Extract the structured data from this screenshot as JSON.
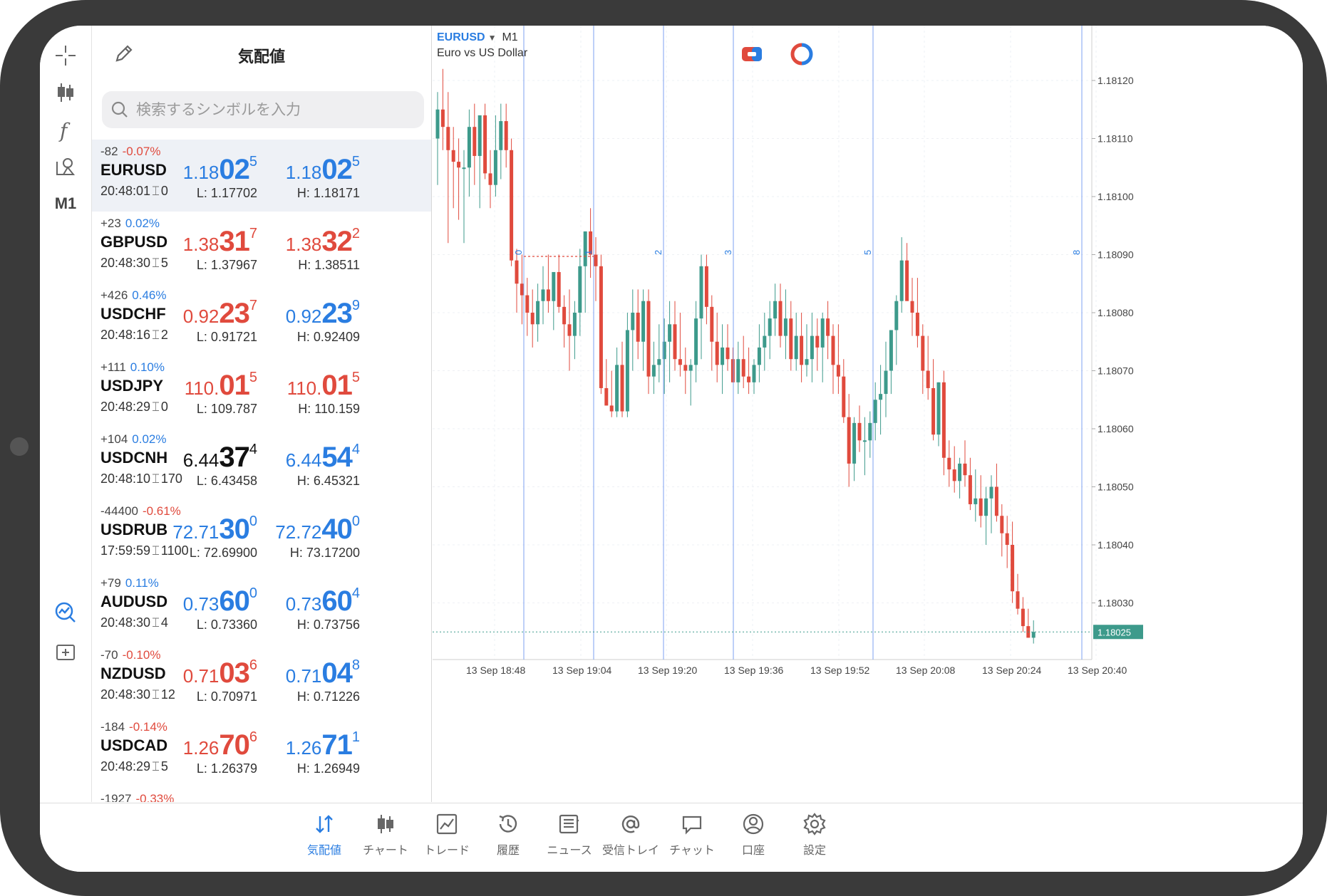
{
  "watchlist": {
    "title": "気配値",
    "search_placeholder": "検索するシンボルを入力",
    "rows": [
      {
        "change": "-82",
        "pct": "-0.07%",
        "pct_color": "red",
        "symbol": "EURUSD",
        "time": "20:48:01",
        "spread": "0",
        "bid": {
          "small": "1.18",
          "big": "02",
          "sup": "5",
          "color": "blue"
        },
        "ask": {
          "small": "1.18",
          "big": "02",
          "sup": "5",
          "color": "blue"
        },
        "low": "L: 1.17702",
        "high": "H: 1.18171"
      },
      {
        "change": "+23",
        "pct": "0.02%",
        "pct_color": "blue",
        "symbol": "GBPUSD",
        "time": "20:48:30",
        "spread": "5",
        "bid": {
          "small": "1.38",
          "big": "31",
          "sup": "7",
          "color": "red"
        },
        "ask": {
          "small": "1.38",
          "big": "32",
          "sup": "2",
          "color": "red"
        },
        "low": "L: 1.37967",
        "high": "H: 1.38511"
      },
      {
        "change": "+426",
        "pct": "0.46%",
        "pct_color": "blue",
        "symbol": "USDCHF",
        "time": "20:48:16",
        "spread": "2",
        "bid": {
          "small": "0.92",
          "big": "23",
          "sup": "7",
          "color": "red"
        },
        "ask": {
          "small": "0.92",
          "big": "23",
          "sup": "9",
          "color": "blue"
        },
        "low": "L: 0.91721",
        "high": "H: 0.92409"
      },
      {
        "change": "+111",
        "pct": "0.10%",
        "pct_color": "blue",
        "symbol": "USDJPY",
        "time": "20:48:29",
        "spread": "0",
        "bid": {
          "small": "110.",
          "big": "01",
          "sup": "5",
          "color": "red"
        },
        "ask": {
          "small": "110.",
          "big": "01",
          "sup": "5",
          "color": "red"
        },
        "low": "L: 109.787",
        "high": "H: 110.159"
      },
      {
        "change": "+104",
        "pct": "0.02%",
        "pct_color": "blue",
        "symbol": "USDCNH",
        "time": "20:48:10",
        "spread": "170",
        "bid": {
          "small": "6.44",
          "big": "37",
          "sup": "4",
          "color": "black"
        },
        "ask": {
          "small": "6.44",
          "big": "54",
          "sup": "4",
          "color": "blue"
        },
        "low": "L: 6.43458",
        "high": "H: 6.45321"
      },
      {
        "change": "-44400",
        "pct": "-0.61%",
        "pct_color": "red",
        "symbol": "USDRUB",
        "time": "17:59:59",
        "spread": "1100",
        "bid": {
          "small": "72.71",
          "big": "30",
          "sup": "0",
          "color": "blue"
        },
        "ask": {
          "small": "72.72",
          "big": "40",
          "sup": "0",
          "color": "blue"
        },
        "low": "L: 72.69900",
        "high": "H: 73.17200"
      },
      {
        "change": "+79",
        "pct": "0.11%",
        "pct_color": "blue",
        "symbol": "AUDUSD",
        "time": "20:48:30",
        "spread": "4",
        "bid": {
          "small": "0.73",
          "big": "60",
          "sup": "0",
          "color": "blue"
        },
        "ask": {
          "small": "0.73",
          "big": "60",
          "sup": "4",
          "color": "blue"
        },
        "low": "L: 0.73360",
        "high": "H: 0.73756"
      },
      {
        "change": "-70",
        "pct": "-0.10%",
        "pct_color": "red",
        "symbol": "NZDUSD",
        "time": "20:48:30",
        "spread": "12",
        "bid": {
          "small": "0.71",
          "big": "03",
          "sup": "6",
          "color": "red"
        },
        "ask": {
          "small": "0.71",
          "big": "04",
          "sup": "8",
          "color": "blue"
        },
        "low": "L: 0.70971",
        "high": "H: 0.71226"
      },
      {
        "change": "-184",
        "pct": "-0.14%",
        "pct_color": "red",
        "symbol": "USDCAD",
        "time": "20:48:29",
        "spread": "5",
        "bid": {
          "small": "1.26",
          "big": "70",
          "sup": "6",
          "color": "red"
        },
        "ask": {
          "small": "1.26",
          "big": "71",
          "sup": "1",
          "color": "blue"
        },
        "low": "L: 1.26379",
        "high": "H: 1.26949"
      }
    ],
    "partial_row": {
      "change": "-1927",
      "pct": "-0.33%"
    }
  },
  "chart": {
    "symbol": "EURUSD",
    "timeframe": "M1",
    "description": "Euro vs US Dollar",
    "current_price": "1.18025",
    "y_labels": [
      "1.18120",
      "1.18110",
      "1.18100",
      "1.18090",
      "1.18080",
      "1.18070",
      "1.18060",
      "1.18050",
      "1.18040",
      "1.18030"
    ],
    "x_labels": [
      "13 Sep 18:48",
      "13 Sep 19:04",
      "13 Sep 19:20",
      "13 Sep 19:36",
      "13 Sep 19:52",
      "13 Sep 20:08",
      "13 Sep 20:24",
      "13 Sep 20:40"
    ],
    "period_markers": [
      "0",
      "1",
      "2",
      "3",
      "5",
      "8"
    ]
  },
  "toolbar": {
    "timeframe_label": "M1"
  },
  "tabs": [
    {
      "label": "気配値",
      "icon": "quotes-icon",
      "active": true
    },
    {
      "label": "チャート",
      "icon": "chart-icon"
    },
    {
      "label": "トレード",
      "icon": "trade-icon"
    },
    {
      "label": "履歴",
      "icon": "history-icon"
    },
    {
      "label": "ニュース",
      "icon": "news-icon"
    },
    {
      "label": "受信トレイ",
      "icon": "mail-icon"
    },
    {
      "label": "チャット",
      "icon": "chat-icon"
    },
    {
      "label": "口座",
      "icon": "account-icon"
    },
    {
      "label": "設定",
      "icon": "settings-icon"
    }
  ],
  "colors": {
    "bull": "#3d9a8b",
    "bear": "#e04a3d",
    "accent": "#2a7de1",
    "fib_line": "#7da1f0"
  }
}
